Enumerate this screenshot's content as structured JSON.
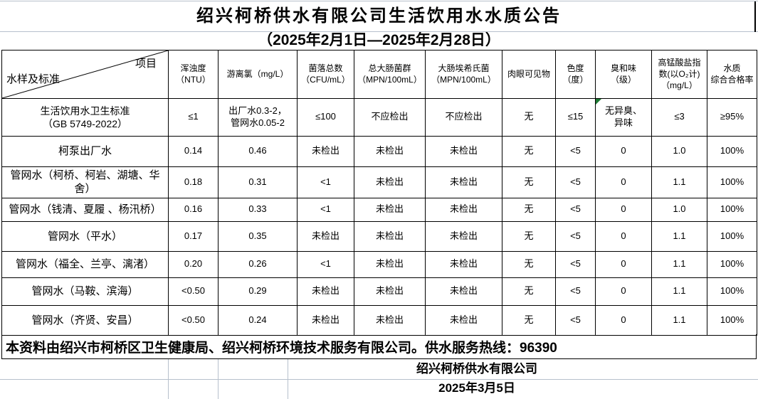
{
  "title": "绍兴柯桥供水有限公司生活饮用水水质公告",
  "subtitle": "（2025年2月1日—2025年2月28日）",
  "table": {
    "corner": {
      "top_right": "项目",
      "bottom_left": "水样及标准"
    },
    "columns": [
      "浑浊度\n（NTU）",
      "游离氯（mg/L）",
      "菌落总数\n（CFU/mL）",
      "总大肠菌群\n（MPN/100mL）",
      "大肠埃希氏菌\n（MPN/100mL）",
      "肉眼可见物",
      "色度\n（度）",
      "臭和味\n（级）",
      "高锰酸盐指\n数(以O₂计)\n（mg/L）",
      "水质\n综合合格率"
    ],
    "rows": [
      {
        "label": "生活饮用水卫生标准\n（GB 5749-2022）",
        "values": [
          "≤1",
          "出厂水0.3-2，\n管网水0.05-2",
          "≤100",
          "不应检出",
          "不应检出",
          "无",
          "≤15",
          "无异臭、\n异味",
          "≤3",
          "≥95%"
        ]
      },
      {
        "label": "柯泵出厂水",
        "values": [
          "0.14",
          "0.46",
          "未检出",
          "未检出",
          "未检出",
          "无",
          "<5",
          "0",
          "1.0",
          "100%"
        ]
      },
      {
        "label": "管网水（柯桥、柯岩、湖塘、华舍）",
        "values": [
          "0.18",
          "0.31",
          "<1",
          "未检出",
          "未检出",
          "无",
          "<5",
          "0",
          "1.1",
          "100%"
        ]
      },
      {
        "label": "管网水（钱清、夏履 、杨汛桥）",
        "values": [
          "0.16",
          "0.33",
          "<1",
          "未检出",
          "未检出",
          "无",
          "<5",
          "0",
          "1.0",
          "100%"
        ]
      },
      {
        "label": "管网水（平水）",
        "values": [
          "0.17",
          "0.35",
          "未检出",
          "未检出",
          "未检出",
          "无",
          "<5",
          "0",
          "1.1",
          "100%"
        ]
      },
      {
        "label": "管网水（福全、兰亭、漓渚）",
        "values": [
          "0.20",
          "0.26",
          "<1",
          "未检出",
          "未检出",
          "无",
          "<5",
          "0",
          "1.1",
          "100%"
        ]
      },
      {
        "label": "管网水（马鞍、滨海）",
        "values": [
          "<0.50",
          "0.29",
          "未检出",
          "未检出",
          "未检出",
          "无",
          "<5",
          "0",
          "1.1",
          "100%"
        ]
      },
      {
        "label": "管网水（齐贤、安昌）",
        "values": [
          "<0.50",
          "0.24",
          "未检出",
          "未检出",
          "未检出",
          "无",
          "<5",
          "0",
          "1.1",
          "100%"
        ]
      }
    ]
  },
  "footer": {
    "note": "本资料由绍兴市柯桥区卫生健康局、绍兴柯桥环境技术服务有限公司。供水服务热线：96390",
    "company": "绍兴柯桥供水有限公司",
    "date": "2025年3月5日"
  },
  "icons": {
    "odor_standard_cell_flag": "green-corner-triangle-icon"
  },
  "colors": {
    "table_border": "#000000",
    "gridline": "#b7c0cc",
    "flag_green": "#1d7a33"
  }
}
